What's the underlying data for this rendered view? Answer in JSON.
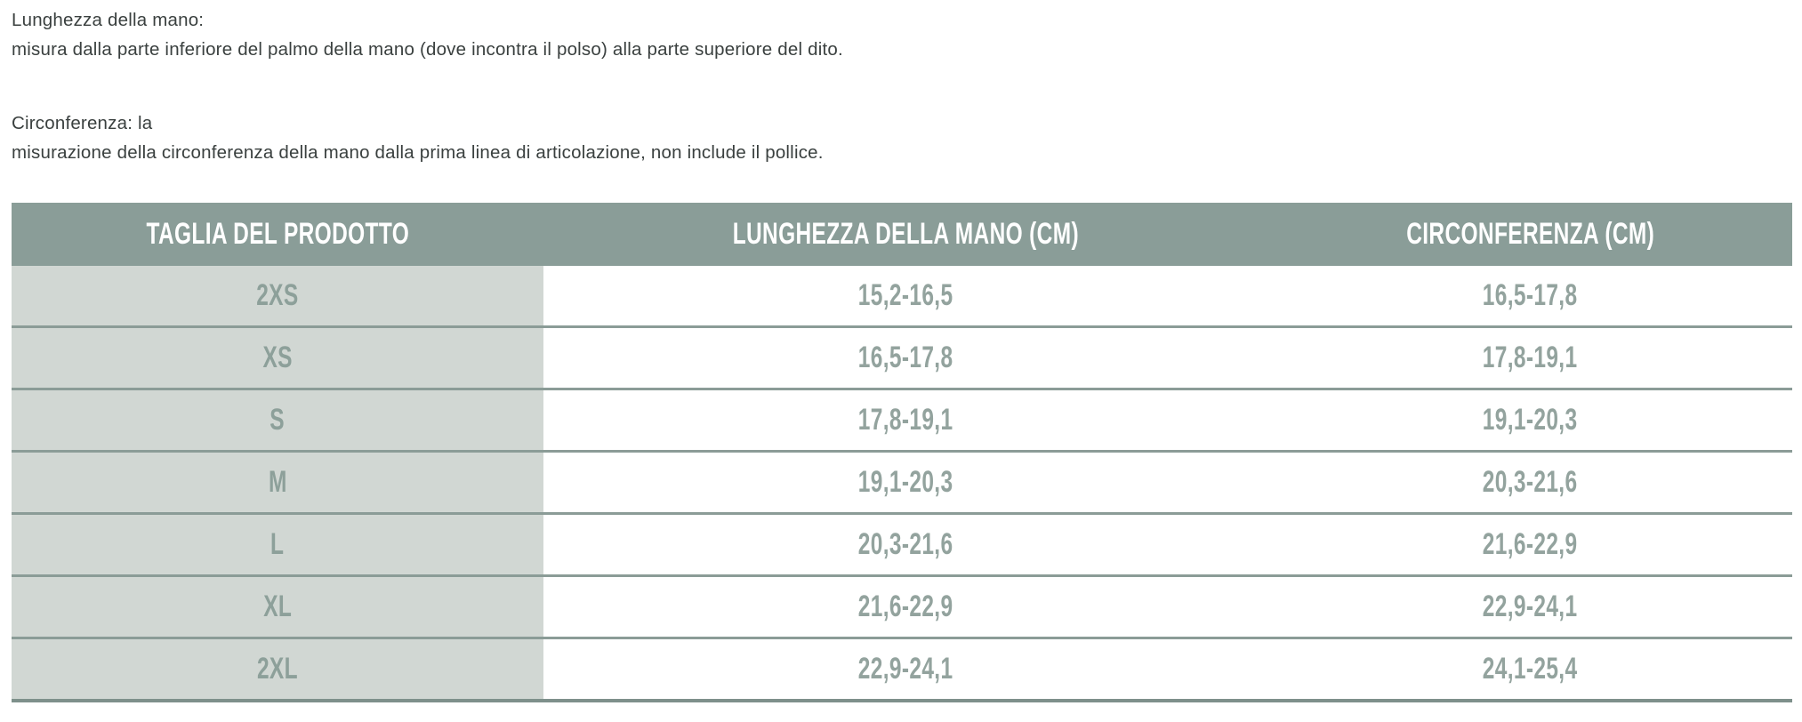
{
  "intro": {
    "para1_line1": "Lunghezza della mano:",
    "para1_line2": "misura dalla parte inferiore del palmo della mano (dove incontra il polso) alla parte superiore del dito.",
    "para2_line1": "Circonferenza: la",
    "para2_line2": "misurazione della circonferenza della mano dalla prima linea di articolazione, non include il pollice."
  },
  "table": {
    "headers": [
      "TAGLIA DEL PRODOTTO",
      "LUNGHEZZA DELLA MANO (CM)",
      "CIRCONFERENZA (CM)"
    ],
    "rows": [
      {
        "size": "2XS",
        "length": "15,2-16,5",
        "circumference": "16,5-17,8"
      },
      {
        "size": "XS",
        "length": "16,5-17,8",
        "circumference": "17,8-19,1"
      },
      {
        "size": "S",
        "length": "17,8-19,1",
        "circumference": "19,1-20,3"
      },
      {
        "size": "M",
        "length": "19,1-20,3",
        "circumference": "20,3-21,6"
      },
      {
        "size": "L",
        "length": "20,3-21,6",
        "circumference": "21,6-22,9"
      },
      {
        "size": "XL",
        "length": "21,6-22,9",
        "circumference": "22,9-24,1"
      },
      {
        "size": "2XL",
        "length": "22,9-24,1",
        "circumference": "24,1-25,4"
      }
    ]
  },
  "colors": {
    "header_bg": "#8a9d98",
    "header_text": "#ffffff",
    "size_column_bg": "#d1d7d3",
    "row_separator": "#8b9c97",
    "bottom_rule": "#7e908b",
    "table_text": "#93a39e",
    "body_text": "#3a403f"
  }
}
